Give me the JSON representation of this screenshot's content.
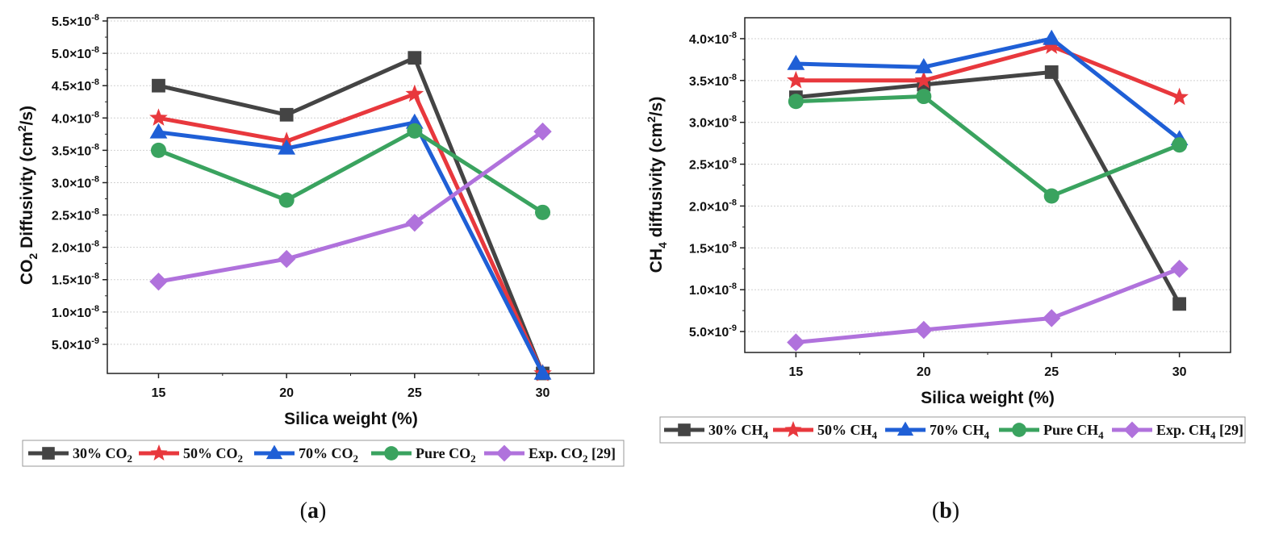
{
  "chart_data": [
    {
      "type": "line",
      "panel": "a",
      "caption": {
        "open": "(",
        "letter": "a",
        "close": ")"
      },
      "xlabel": "Silica weight (%)",
      "ylabel": {
        "main": "CO",
        "sub": "2",
        "rest": " Diffusivity (cm",
        "sup": "2",
        "end": "/s)"
      },
      "x": [
        15,
        20,
        25,
        30
      ],
      "xlim": [
        13,
        32
      ],
      "ylim": [
        5e-10,
        5.55e-08
      ],
      "yticks": [
        {
          "value": 5e-09,
          "label": "5.0×10",
          "exp": "-9"
        },
        {
          "value": 1e-08,
          "label": "1.0×10",
          "exp": "-8"
        },
        {
          "value": 1.5e-08,
          "label": "1.5×10",
          "exp": "-8"
        },
        {
          "value": 2e-08,
          "label": "2.0×10",
          "exp": "-8"
        },
        {
          "value": 2.5e-08,
          "label": "2.5×10",
          "exp": "-8"
        },
        {
          "value": 3e-08,
          "label": "3.0×10",
          "exp": "-8"
        },
        {
          "value": 3.5e-08,
          "label": "3.5×10",
          "exp": "-8"
        },
        {
          "value": 4e-08,
          "label": "4.0×10",
          "exp": "-8"
        },
        {
          "value": 4.5e-08,
          "label": "4.5×10",
          "exp": "-8"
        },
        {
          "value": 5e-08,
          "label": "5.0×10",
          "exp": "-8"
        },
        {
          "value": 5.5e-08,
          "label": "5.5×10",
          "exp": "-8"
        }
      ],
      "series": [
        {
          "name": "30% CO2",
          "label": "30% CO",
          "sub": "2",
          "color": "#444444",
          "marker": "square",
          "values": [
            4.5e-08,
            4.05e-08,
            4.93e-08,
            5e-10
          ]
        },
        {
          "name": "50% CO2",
          "label": "50% CO",
          "sub": "2",
          "color": "#e8383d",
          "marker": "star",
          "values": [
            4e-08,
            3.64e-08,
            4.37e-08,
            5e-10
          ]
        },
        {
          "name": "70% CO2",
          "label": "70% CO",
          "sub": "2",
          "color": "#1f5fd6",
          "marker": "triangle",
          "values": [
            3.78e-08,
            3.53e-08,
            3.93e-08,
            5e-10
          ]
        },
        {
          "name": "Pure CO2",
          "label": "Pure CO",
          "sub": "2",
          "color": "#3aa35f",
          "marker": "circle",
          "values": [
            3.5e-08,
            2.73e-08,
            3.8e-08,
            2.54e-08
          ]
        },
        {
          "name": "Exp. CO2 [29]",
          "label": "Exp. CO",
          "sub": "2",
          "after": " [29]",
          "color": "#b072dc",
          "marker": "diamond",
          "values": [
            1.47e-08,
            1.82e-08,
            2.38e-08,
            3.79e-08
          ]
        }
      ]
    },
    {
      "type": "line",
      "panel": "b",
      "caption": {
        "open": "(",
        "letter": "b",
        "close": ")"
      },
      "xlabel": "Silica weight (%)",
      "ylabel": {
        "main": "CH",
        "sub": "4",
        "rest": " diffusivity (cm",
        "sup": "2",
        "end": "/s)"
      },
      "x": [
        15,
        20,
        25,
        30
      ],
      "xlim": [
        13,
        32
      ],
      "ylim": [
        2.5e-09,
        4.25e-08
      ],
      "yticks": [
        {
          "value": 5e-09,
          "label": "5.0×10",
          "exp": "-9"
        },
        {
          "value": 1e-08,
          "label": "1.0×10",
          "exp": "-8"
        },
        {
          "value": 1.5e-08,
          "label": "1.5×10",
          "exp": "-8"
        },
        {
          "value": 2e-08,
          "label": "2.0×10",
          "exp": "-8"
        },
        {
          "value": 2.5e-08,
          "label": "2.5×10",
          "exp": "-8"
        },
        {
          "value": 3e-08,
          "label": "3.0×10",
          "exp": "-8"
        },
        {
          "value": 3.5e-08,
          "label": "3.5×10",
          "exp": "-8"
        },
        {
          "value": 4e-08,
          "label": "4.0×10",
          "exp": "-8"
        }
      ],
      "series": [
        {
          "name": "30% CH4",
          "label": "30% CH",
          "sub": "4",
          "color": "#444444",
          "marker": "square",
          "values": [
            3.3e-08,
            3.45e-08,
            3.6e-08,
            8.3e-09
          ]
        },
        {
          "name": "50% CH4",
          "label": "50% CH",
          "sub": "4",
          "color": "#e8383d",
          "marker": "star",
          "values": [
            3.5e-08,
            3.5e-08,
            3.91e-08,
            3.3e-08
          ]
        },
        {
          "name": "70% CH4",
          "label": "70% CH",
          "sub": "4",
          "color": "#1f5fd6",
          "marker": "triangle",
          "values": [
            3.7e-08,
            3.66e-08,
            4e-08,
            2.8e-08
          ]
        },
        {
          "name": "Pure CH4",
          "label": "Pure CH",
          "sub": "4",
          "color": "#3aa35f",
          "marker": "circle",
          "values": [
            3.25e-08,
            3.31e-08,
            2.12e-08,
            2.73e-08
          ]
        },
        {
          "name": "Exp. CH4 [29]",
          "label": "Exp. CH",
          "sub": "4",
          "after": " [29]",
          "color": "#b072dc",
          "marker": "diamond",
          "values": [
            3.7e-09,
            5.2e-09,
            6.6e-09,
            1.25e-08
          ]
        }
      ]
    }
  ]
}
